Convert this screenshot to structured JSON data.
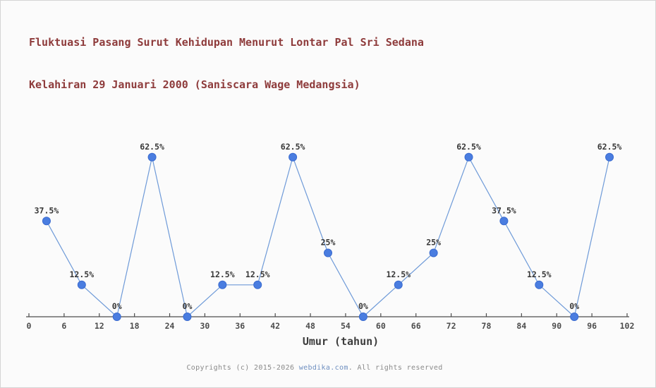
{
  "title": {
    "line1": "Fluktuasi Pasang Surut Kehidupan Menurut Lontar Pal Sri Sedana",
    "line2": "Kelahiran 29 Januari 2000 (Saniscara Wage Medangsia)"
  },
  "chart_data": {
    "type": "line",
    "title": "Fluktuasi Pasang Surut Kehidupan Menurut Lontar Pal Sri Sedana Kelahiran 29 Januari 2000 (Saniscara Wage Medangsia)",
    "xlabel": "Umur (tahun)",
    "ylabel": "",
    "x": [
      3,
      9,
      15,
      21,
      27,
      33,
      39,
      45,
      51,
      57,
      63,
      69,
      75,
      81,
      87,
      93,
      99
    ],
    "values": [
      37.5,
      12.5,
      0,
      62.5,
      0,
      12.5,
      12.5,
      62.5,
      25,
      0,
      12.5,
      25,
      62.5,
      37.5,
      12.5,
      0,
      62.5
    ],
    "point_labels": [
      "37.5%",
      "12.5%",
      "0%",
      "62.5%",
      "0%",
      "12.5%",
      "12.5%",
      "62.5%",
      "25%",
      "0%",
      "12.5%",
      "25%",
      "62.5%",
      "37.5%",
      "12.5%",
      "0%",
      "62.5%"
    ],
    "x_ticks": [
      0,
      6,
      12,
      18,
      24,
      30,
      36,
      42,
      48,
      54,
      60,
      66,
      72,
      78,
      84,
      90,
      96,
      102
    ],
    "xlim": [
      0,
      102
    ],
    "ylim": [
      0,
      100
    ],
    "grid": false,
    "legend": null,
    "marker": "circle"
  },
  "footer": {
    "prefix": "Copyrights (c) 2015-2026 ",
    "link": "webdika.com",
    "suffix": ". All rights reserved"
  },
  "colors": {
    "background": "#fbfbfb",
    "border": "#d5d5d5",
    "title": "#8e3b3b",
    "axis": "#4d4d4d",
    "tick_label": "#4d4d4d",
    "xlabel": "#3d3d3d",
    "point_label": "#383838",
    "line": "#6e9ad8",
    "marker_fill": "#4a7de0",
    "marker_stroke": "#3a6bd0",
    "footer_text": "#8a8a8a",
    "footer_link": "#6e8fc0"
  }
}
